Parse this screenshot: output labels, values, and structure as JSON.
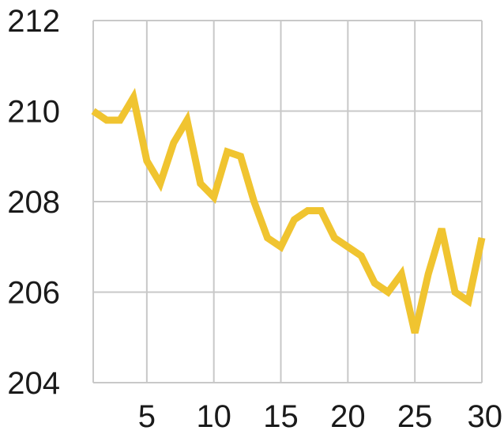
{
  "chart_data": {
    "type": "line",
    "x": [
      1,
      2,
      3,
      4,
      5,
      6,
      7,
      8,
      9,
      10,
      11,
      12,
      13,
      14,
      15,
      16,
      17,
      18,
      19,
      20,
      21,
      22,
      23,
      24,
      25,
      26,
      27,
      28,
      29,
      30
    ],
    "series": [
      {
        "values": [
          210.0,
          209.8,
          209.8,
          210.3,
          208.9,
          208.4,
          209.3,
          209.8,
          208.4,
          208.1,
          209.1,
          209.0,
          208.0,
          207.2,
          207.0,
          207.6,
          207.8,
          207.8,
          207.2,
          207.0,
          206.8,
          206.2,
          206.0,
          206.4,
          205.1,
          206.4,
          207.4,
          206.0,
          205.8,
          207.2
        ]
      }
    ],
    "title": "",
    "xlabel": "",
    "ylabel": "",
    "xlim": [
      1,
      30
    ],
    "ylim": [
      204,
      212
    ],
    "xticks": [
      5,
      10,
      15,
      20,
      25,
      30
    ],
    "yticks": [
      204,
      206,
      208,
      210,
      212
    ],
    "xtick_labels": [
      "5",
      "10",
      "15",
      "20",
      "25",
      "30"
    ],
    "ytick_labels": [
      "204",
      "206",
      "208",
      "210",
      "212"
    ],
    "grid": true,
    "colors": {
      "line": "#F0C430",
      "grid": "#C8C8C8",
      "text": "#1A1A1A"
    }
  }
}
